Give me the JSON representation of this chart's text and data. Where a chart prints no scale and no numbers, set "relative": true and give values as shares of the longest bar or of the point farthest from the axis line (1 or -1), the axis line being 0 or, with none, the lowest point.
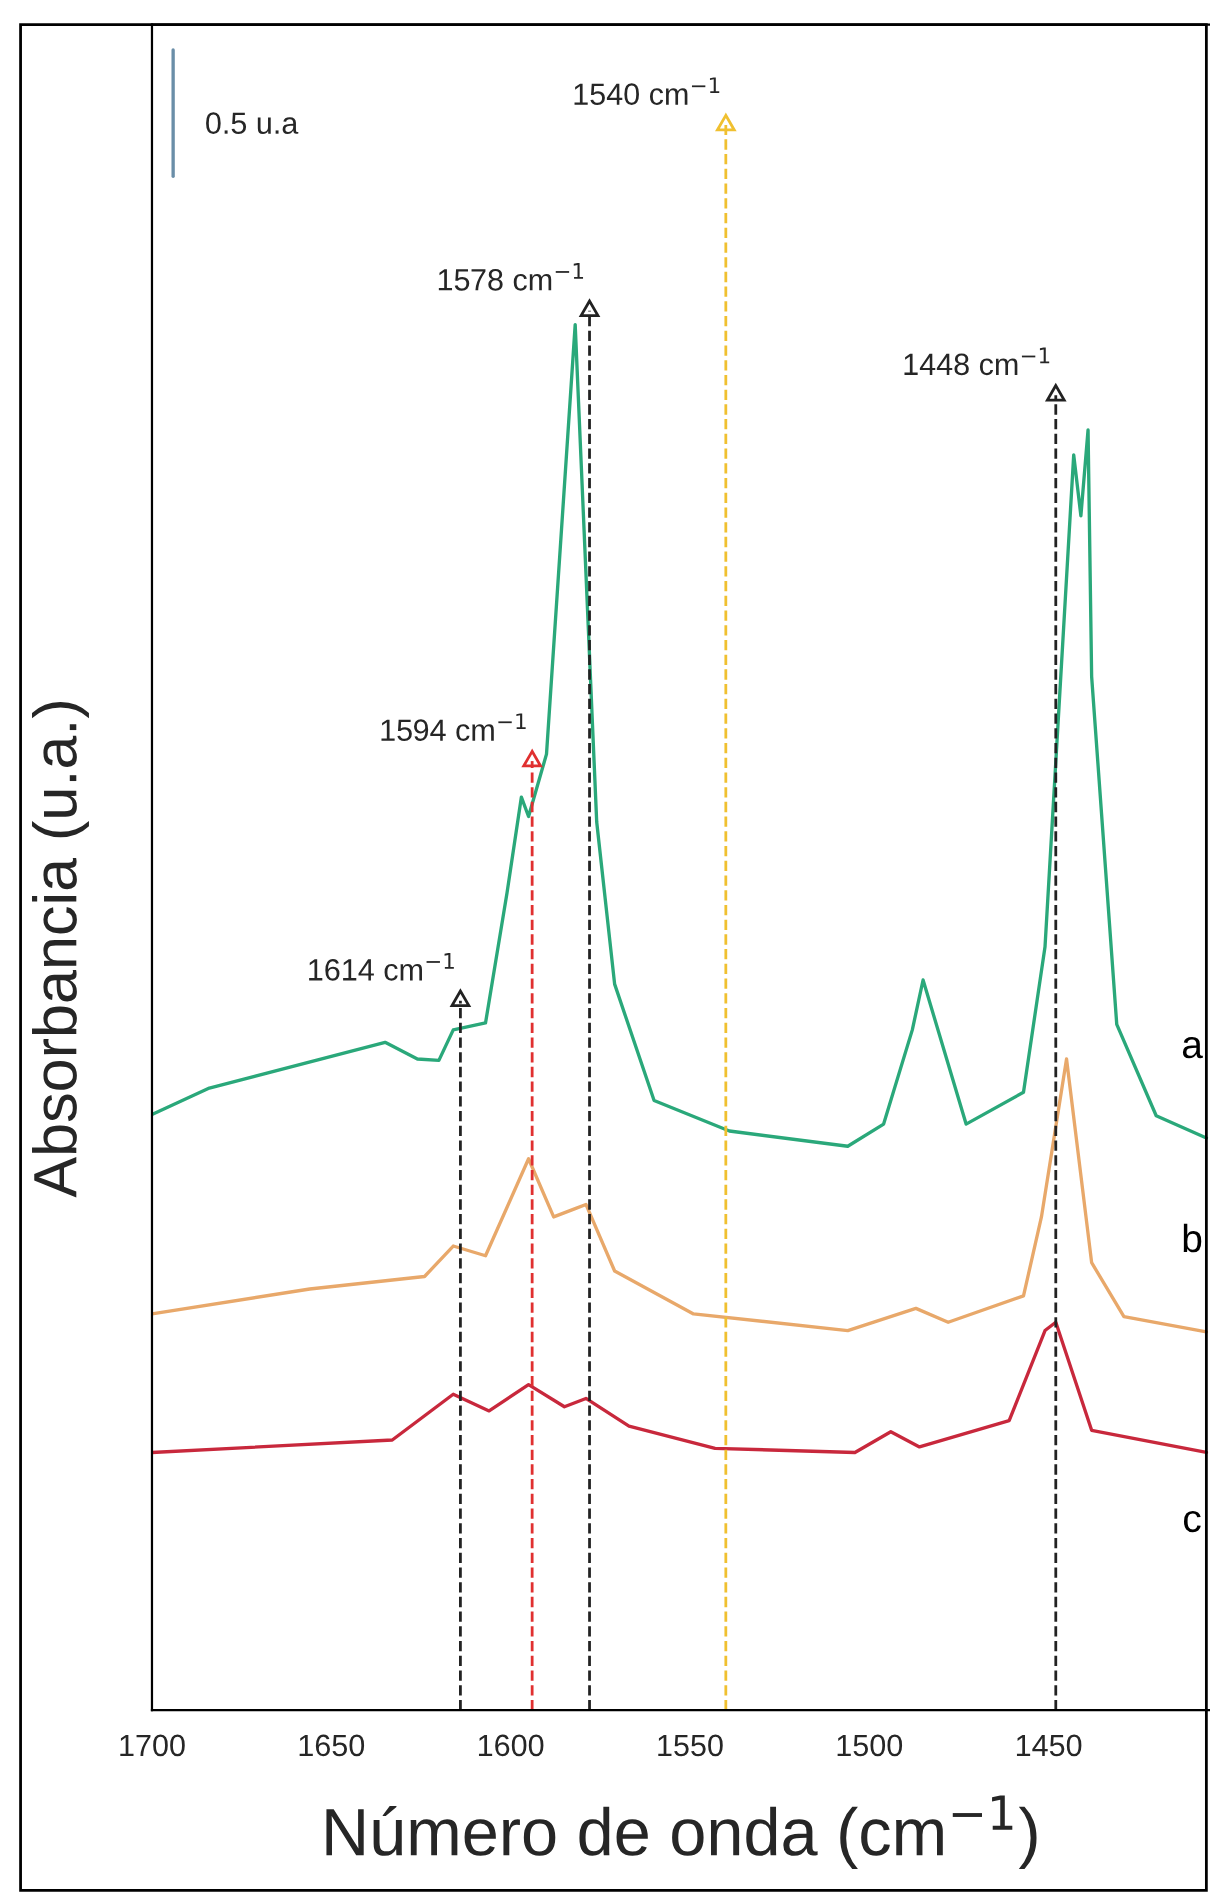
{
  "chart_data": {
    "type": "line",
    "relative": true,
    "xlabel": "Número de onda (cm$^{−1}$)",
    "ylabel": "Absorbancia (u.a.)",
    "xlim": [
      1700,
      1405
    ],
    "xticks": [
      1700,
      1650,
      1600,
      1550,
      1500,
      1450
    ],
    "grid": false,
    "legend": false,
    "tick_labels": "x",
    "line_style": "solid",
    "marker": "none",
    "series": [
      {
        "name": "a",
        "color": "#2aa87a",
        "x": [
          1700,
          1684,
          1635,
          1626,
          1620,
          1616,
          1607,
          1601,
          1597,
          1595,
          1590,
          1582,
          1576,
          1571,
          1560,
          1539,
          1506,
          1496,
          1488,
          1485,
          1482,
          1473,
          1457,
          1451,
          1443,
          1441,
          1439,
          1438,
          1431,
          1420,
          1406
        ],
        "values": [
          0.43,
          0.449,
          0.482,
          0.47,
          0.469,
          0.491,
          0.496,
          0.59,
          0.659,
          0.645,
          0.69,
          1.0,
          0.641,
          0.524,
          0.44,
          0.418,
          0.407,
          0.423,
          0.491,
          0.527,
          0.501,
          0.423,
          0.446,
          0.551,
          0.906,
          0.862,
          0.924,
          0.746,
          0.495,
          0.429,
          0.413
        ]
      },
      {
        "name": "b",
        "color": "#e8a86a",
        "x": [
          1700,
          1656,
          1624,
          1616,
          1607,
          1595,
          1588,
          1582,
          1579,
          1571,
          1549,
          1506,
          1487,
          1478,
          1457,
          1452,
          1445,
          1438,
          1429,
          1406
        ],
        "values": [
          0.286,
          0.304,
          0.313,
          0.335,
          0.328,
          0.398,
          0.356,
          0.362,
          0.365,
          0.317,
          0.286,
          0.274,
          0.29,
          0.28,
          0.299,
          0.356,
          0.47,
          0.323,
          0.284,
          0.273
        ]
      },
      {
        "name": "c",
        "color": "#c8283c",
        "x": [
          1700,
          1633,
          1616,
          1606,
          1595,
          1585,
          1579,
          1567,
          1543,
          1504,
          1494,
          1486,
          1461,
          1451,
          1448,
          1438,
          1406
        ],
        "values": [
          0.186,
          0.195,
          0.228,
          0.216,
          0.235,
          0.219,
          0.225,
          0.205,
          0.189,
          0.186,
          0.201,
          0.19,
          0.209,
          0.274,
          0.28,
          0.202,
          0.186
        ]
      }
    ],
    "ref_lines": [
      {
        "axis": "x",
        "value": 1614,
        "color": "#222222",
        "line_style": "dashed"
      },
      {
        "axis": "x",
        "value": 1594,
        "color": "#e03030",
        "line_style": "dashed"
      },
      {
        "axis": "x",
        "value": 1578,
        "color": "#222222",
        "line_style": "dashed"
      },
      {
        "axis": "x",
        "value": 1540,
        "color": "#f0c030",
        "line_style": "dashed"
      },
      {
        "axis": "x",
        "value": 1448,
        "color": "#222222",
        "line_style": "dashed"
      }
    ],
    "annotations": [
      {
        "text": "1614 cm$^{−1}$",
        "x": 1614,
        "y": 0.512
      },
      {
        "text": "1594 cm$^{−1}$",
        "x": 1594,
        "y": 0.685
      },
      {
        "text": "1578 cm$^{−1}$",
        "x": 1578,
        "y": 1.01
      },
      {
        "text": "1540 cm$^{−1}$",
        "x": 1540,
        "y": 1.144
      },
      {
        "text": "1448 cm$^{−1}$",
        "x": 1448,
        "y": 0.949
      },
      "0.5 u.a"
    ]
  }
}
